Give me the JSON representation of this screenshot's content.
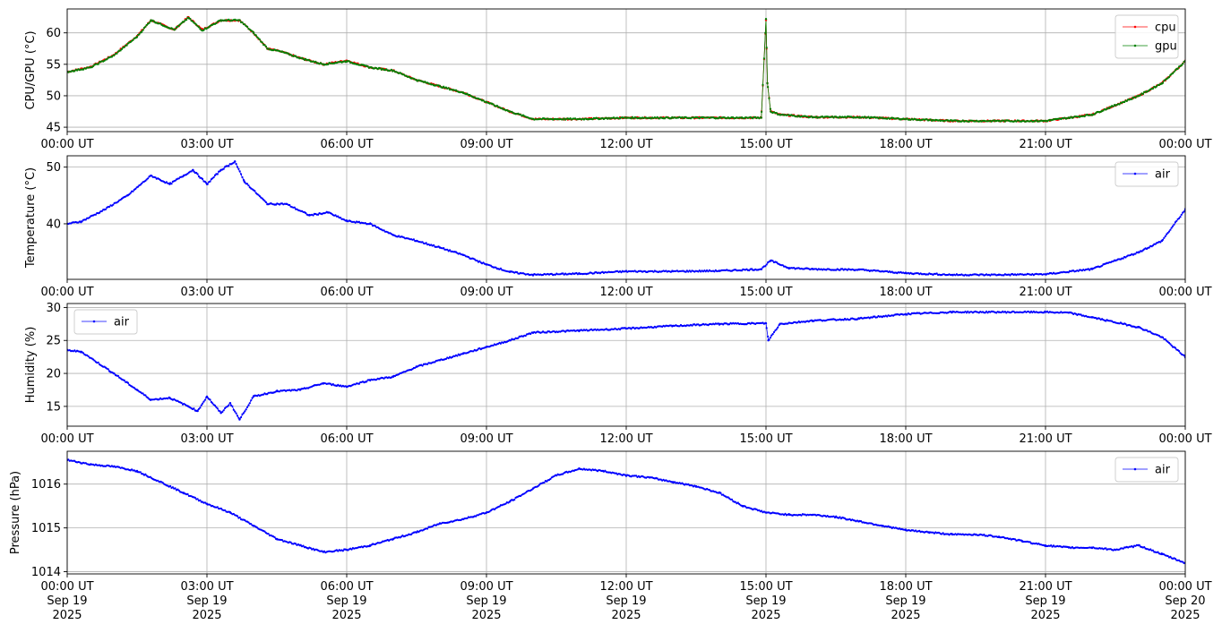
{
  "chart_data": [
    {
      "type": "line",
      "ylabel": "CPU/GPU (°C)",
      "ylim": [
        44.3,
        63.8
      ],
      "yticks": [
        45,
        50,
        55,
        60
      ],
      "x_tick_labels": [
        "00:00 UT",
        "03:00 UT",
        "06:00 UT",
        "09:00 UT",
        "12:00 UT",
        "15:00 UT",
        "18:00 UT",
        "21:00 UT",
        "00:00 UT"
      ],
      "grid": true,
      "legend_position": "top-right",
      "x": [
        0,
        0.5,
        1.0,
        1.5,
        1.8,
        2.3,
        2.6,
        2.9,
        3.3,
        3.7,
        4.0,
        4.3,
        4.6,
        5.0,
        5.5,
        6.0,
        6.5,
        7.0,
        7.5,
        8.0,
        8.5,
        9.0,
        9.5,
        10.0,
        11.0,
        12.0,
        13.0,
        14.0,
        14.9,
        15.0,
        15.03,
        15.1,
        15.3,
        16.0,
        17.0,
        18.0,
        19.0,
        20.0,
        21.0,
        21.5,
        22.0,
        22.5,
        23.0,
        23.5,
        24.0
      ],
      "series": [
        {
          "name": "cpu",
          "color": "#ff0000",
          "values": [
            53.8,
            54.6,
            56.5,
            59.5,
            62.0,
            60.5,
            62.5,
            60.5,
            62.0,
            62.0,
            60.0,
            57.5,
            57.0,
            56.0,
            55.0,
            55.6,
            54.5,
            54.0,
            52.5,
            51.5,
            50.5,
            49.0,
            47.5,
            46.3,
            46.3,
            46.5,
            46.5,
            46.5,
            46.5,
            62.0,
            52.0,
            47.5,
            47.0,
            46.6,
            46.6,
            46.3,
            46.0,
            46.0,
            46.0,
            46.5,
            47.0,
            48.5,
            50.0,
            52.0,
            55.5
          ]
        },
        {
          "name": "gpu",
          "color": "#008000",
          "values": [
            53.8,
            54.5,
            56.4,
            59.4,
            62.0,
            60.5,
            62.4,
            60.4,
            62.0,
            62.0,
            60.0,
            57.5,
            57.0,
            56.0,
            55.0,
            55.5,
            54.5,
            54.0,
            52.5,
            51.5,
            50.5,
            49.0,
            47.5,
            46.3,
            46.3,
            46.5,
            46.5,
            46.5,
            46.5,
            62.2,
            52.0,
            47.5,
            47.0,
            46.6,
            46.6,
            46.3,
            46.0,
            46.0,
            46.0,
            46.5,
            47.0,
            48.5,
            50.0,
            52.0,
            55.5
          ]
        }
      ]
    },
    {
      "type": "line",
      "ylabel": "Temperature (°C)",
      "ylim": [
        30.2,
        52.0
      ],
      "yticks": [
        40,
        50
      ],
      "x_tick_labels": [
        "00:00 UT",
        "03:00 UT",
        "06:00 UT",
        "09:00 UT",
        "12:00 UT",
        "15:00 UT",
        "18:00 UT",
        "21:00 UT",
        "00:00 UT"
      ],
      "grid": true,
      "legend_position": "top-right",
      "x": [
        0,
        0.3,
        0.8,
        1.3,
        1.8,
        2.2,
        2.5,
        2.7,
        3.0,
        3.3,
        3.6,
        3.8,
        4.3,
        4.7,
        5.2,
        5.6,
        6.0,
        6.5,
        7.0,
        7.5,
        8.0,
        8.5,
        9.0,
        9.5,
        10.0,
        11.0,
        12.0,
        13.0,
        14.0,
        14.9,
        15.1,
        15.5,
        16.0,
        17.0,
        18.0,
        19.0,
        20.0,
        21.0,
        22.0,
        22.5,
        23.0,
        23.5,
        24.0
      ],
      "series": [
        {
          "name": "air",
          "color": "#0000ff",
          "values": [
            40.0,
            40.4,
            42.5,
            45.0,
            48.5,
            47.0,
            48.5,
            49.5,
            47.0,
            49.5,
            51.0,
            47.5,
            43.5,
            43.5,
            41.5,
            42.0,
            40.5,
            40.0,
            38.0,
            37.0,
            35.8,
            34.5,
            32.8,
            31.5,
            31.0,
            31.2,
            31.6,
            31.6,
            31.7,
            32.0,
            33.5,
            32.2,
            32.0,
            31.9,
            31.3,
            31.0,
            31.0,
            31.1,
            32.0,
            33.5,
            35.0,
            37.0,
            42.5
          ]
        }
      ]
    },
    {
      "type": "line",
      "ylabel": "Humidity (%)",
      "ylim": [
        12.0,
        30.6
      ],
      "yticks": [
        15,
        20,
        25,
        30
      ],
      "x_tick_labels": [
        "00:00 UT",
        "03:00 UT",
        "06:00 UT",
        "09:00 UT",
        "12:00 UT",
        "15:00 UT",
        "18:00 UT",
        "21:00 UT",
        "00:00 UT"
      ],
      "grid": true,
      "legend_position": "top-left",
      "x": [
        0,
        0.3,
        1.0,
        1.5,
        1.8,
        2.2,
        2.6,
        2.8,
        3.0,
        3.3,
        3.5,
        3.7,
        4.0,
        4.5,
        5.0,
        5.5,
        6.0,
        6.5,
        7.0,
        7.5,
        8.0,
        8.5,
        9.0,
        9.5,
        10.0,
        11.0,
        12.0,
        13.0,
        14.0,
        15.0,
        15.05,
        15.3,
        16.0,
        17.0,
        18.0,
        19.0,
        20.0,
        21.0,
        21.5,
        22.0,
        23.0,
        23.5,
        24.0
      ],
      "series": [
        {
          "name": "air",
          "color": "#0000ff",
          "values": [
            23.5,
            23.3,
            20.0,
            17.5,
            16.0,
            16.3,
            15.0,
            14.3,
            16.5,
            14.0,
            15.5,
            13.0,
            16.5,
            17.3,
            17.5,
            18.5,
            18.0,
            19.0,
            19.5,
            21.0,
            22.0,
            23.0,
            24.0,
            25.0,
            26.2,
            26.5,
            26.8,
            27.2,
            27.5,
            27.6,
            25.0,
            27.5,
            28.0,
            28.3,
            29.0,
            29.3,
            29.3,
            29.3,
            29.2,
            28.5,
            27.0,
            25.5,
            22.5
          ]
        }
      ]
    },
    {
      "type": "line",
      "ylabel": "Pressure (hPa)",
      "ylim": [
        1013.95,
        1016.75
      ],
      "yticks": [
        1014,
        1015,
        1016
      ],
      "x_tick_labels": [
        "00:00 UT\nSep 19\n2025",
        "03:00 UT\nSep 19\n2025",
        "06:00 UT\nSep 19\n2025",
        "09:00 UT\nSep 19\n2025",
        "12:00 UT\nSep 19\n2025",
        "15:00 UT\nSep 19\n2025",
        "18:00 UT\nSep 19\n2025",
        "21:00 UT\nSep 19\n2025",
        "00:00 UT\nSep 20\n2025"
      ],
      "grid": true,
      "legend_position": "top-right",
      "x": [
        0,
        0.5,
        1.0,
        1.5,
        2.0,
        2.5,
        3.0,
        3.5,
        4.0,
        4.5,
        5.0,
        5.5,
        6.0,
        6.5,
        7.0,
        7.5,
        8.0,
        8.5,
        9.0,
        9.5,
        10.0,
        10.5,
        11.0,
        11.5,
        12.0,
        12.5,
        13.0,
        13.5,
        14.0,
        14.5,
        15.0,
        15.5,
        16.0,
        16.5,
        17.0,
        17.5,
        18.0,
        18.5,
        19.0,
        19.5,
        20.0,
        20.5,
        21.0,
        21.5,
        22.0,
        22.5,
        23.0,
        23.5,
        24.0
      ],
      "series": [
        {
          "name": "air",
          "color": "#0000ff",
          "values": [
            1016.55,
            1016.45,
            1016.4,
            1016.3,
            1016.05,
            1015.8,
            1015.55,
            1015.35,
            1015.05,
            1014.75,
            1014.6,
            1014.45,
            1014.5,
            1014.6,
            1014.75,
            1014.9,
            1015.1,
            1015.2,
            1015.35,
            1015.6,
            1015.9,
            1016.2,
            1016.35,
            1016.3,
            1016.2,
            1016.15,
            1016.05,
            1015.95,
            1015.8,
            1015.5,
            1015.35,
            1015.3,
            1015.3,
            1015.25,
            1015.15,
            1015.05,
            1014.95,
            1014.9,
            1014.85,
            1014.85,
            1014.8,
            1014.7,
            1014.6,
            1014.55,
            1014.55,
            1014.5,
            1014.6,
            1014.4,
            1014.2
          ]
        }
      ]
    }
  ]
}
